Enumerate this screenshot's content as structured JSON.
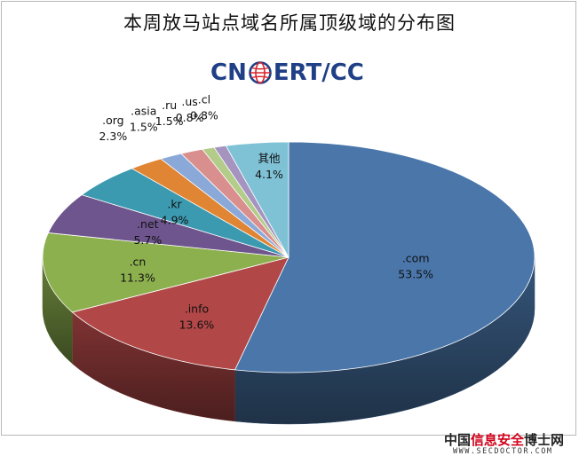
{
  "title": "本周放马站点域名所属顶级域的分布图",
  "logo": {
    "text_left": "CN",
    "text_right": "ERT/CC"
  },
  "watermark": {
    "text_a": "中国",
    "text_red": "信息安全",
    "text_b": "博士网",
    "url": "WWW.SECDOCTOR.COM"
  },
  "chart_data": {
    "type": "pie",
    "title": "本周放马站点域名所属顶级域的分布图",
    "slices": [
      {
        "label": ".com",
        "value": 53.5,
        "display": "53.5%",
        "color": "#4a76aa"
      },
      {
        "label": ".info",
        "value": 13.6,
        "display": "13.6%",
        "color": "#b24747"
      },
      {
        "label": ".cn",
        "value": 11.3,
        "display": "11.3%",
        "color": "#8db04f"
      },
      {
        "label": ".net",
        "value": 5.7,
        "display": "5.7%",
        "color": "#6e558e"
      },
      {
        "label": ".kr",
        "value": 4.9,
        "display": "4.9%",
        "color": "#3c9ab0"
      },
      {
        "label": ".org",
        "value": 2.3,
        "display": "2.3%",
        "color": "#e08533"
      },
      {
        "label": ".asia",
        "value": 1.5,
        "display": "1.5%",
        "color": "#8aa8d8"
      },
      {
        "label": ".ru",
        "value": 1.5,
        "display": "1.5%",
        "color": "#d98f8d"
      },
      {
        "label": ".us",
        "value": 0.8,
        "display": "0.8%",
        "color": "#b3cc8a"
      },
      {
        "label": ".cl",
        "value": 0.8,
        "display": "0.8%",
        "color": "#a594c0"
      },
      {
        "label": "其他",
        "value": 4.1,
        "display": "4.1%",
        "color": "#7fc2d6"
      }
    ]
  }
}
